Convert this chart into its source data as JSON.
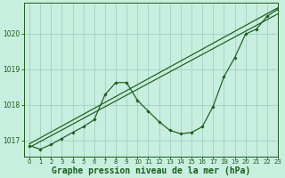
{
  "title": "Graphe pression niveau de la mer (hPa)",
  "bg_color": "#c8eee0",
  "grid_color": "#99ccbb",
  "line_color": "#1a5c1a",
  "xlim": [
    -0.5,
    23
  ],
  "ylim": [
    1016.55,
    1020.85
  ],
  "yticks": [
    1017,
    1018,
    1019,
    1020
  ],
  "xticks": [
    0,
    1,
    2,
    3,
    4,
    5,
    6,
    7,
    8,
    9,
    10,
    11,
    12,
    13,
    14,
    15,
    16,
    17,
    18,
    19,
    20,
    21,
    22,
    23
  ],
  "line1_x": [
    0,
    23
  ],
  "line1_y": [
    1016.8,
    1020.55
  ],
  "line2_x": [
    0,
    23
  ],
  "line2_y": [
    1016.9,
    1020.72
  ],
  "line3_x": [
    0,
    1,
    2,
    3,
    4,
    5,
    6,
    7,
    8,
    9,
    10,
    11,
    12,
    13,
    14,
    15,
    16,
    17,
    18,
    19,
    20,
    21,
    22,
    23
  ],
  "line3_y": [
    1016.85,
    1016.75,
    1016.88,
    1017.05,
    1017.22,
    1017.38,
    1017.58,
    1018.28,
    1018.62,
    1018.62,
    1018.12,
    1017.82,
    1017.52,
    1017.28,
    1017.18,
    1017.22,
    1017.38,
    1017.95,
    1018.78,
    1019.32,
    1019.98,
    1020.12,
    1020.48,
    1020.68
  ],
  "title_fontsize": 7,
  "tick_fontsize": 5
}
